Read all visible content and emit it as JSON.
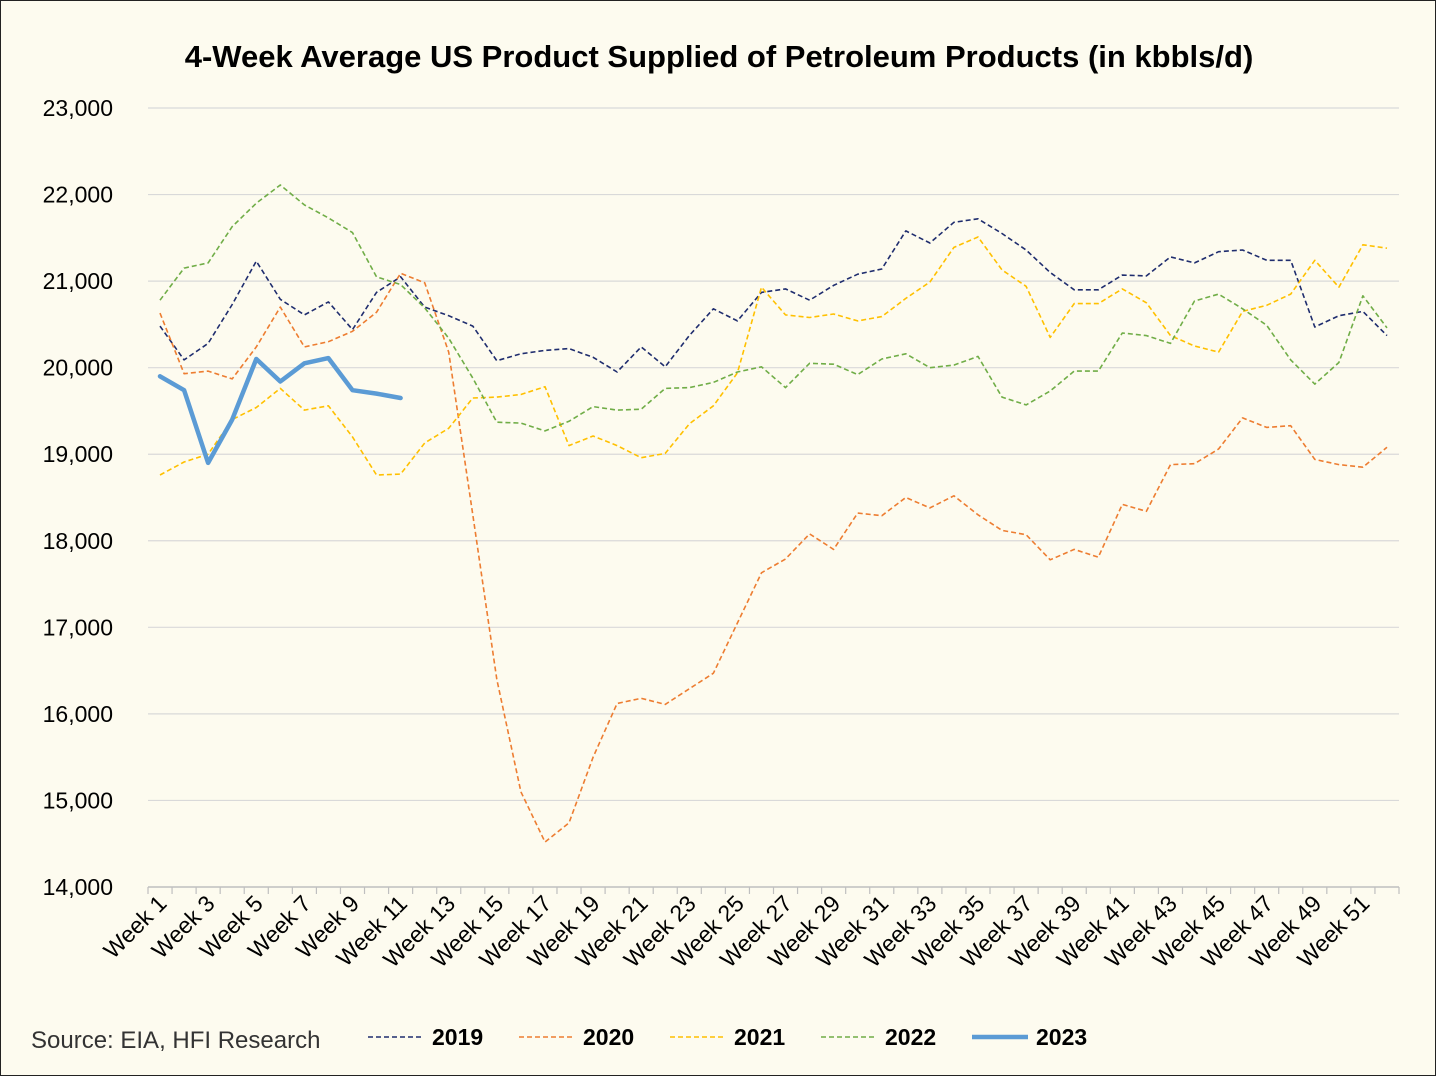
{
  "chart_data": {
    "type": "line",
    "title": "4-Week Average US Product Supplied of Petroleum Products (in kbbls/d)",
    "source": "Source: EIA, HFI Research",
    "xlabel": "",
    "ylabel": "",
    "ylim": [
      14000,
      23000
    ],
    "yticks": [
      "14,000",
      "15,000",
      "16,000",
      "17,000",
      "18,000",
      "19,000",
      "20,000",
      "21,000",
      "22,000",
      "23,000"
    ],
    "xticks": [
      "Week 1",
      "Week 3",
      "Week 5",
      "Week 7",
      "Week 9",
      "Week 11",
      "Week 13",
      "Week 15",
      "Week 17",
      "Week 19",
      "Week 21",
      "Week 23",
      "Week 25",
      "Week 27",
      "Week 29",
      "Week 31",
      "Week 33",
      "Week 35",
      "Week 37",
      "Week 39",
      "Week 41",
      "Week 43",
      "Week 45",
      "Week 47",
      "Week 49",
      "Week 51"
    ],
    "legend_position": "bottom",
    "grid": true,
    "series": [
      {
        "name": "2019",
        "color": "#1f2d6e",
        "style": "dashed",
        "values": [
          20480,
          20090,
          20280,
          20730,
          21230,
          20790,
          20610,
          20760,
          20440,
          20870,
          21050,
          20700,
          20600,
          20480,
          20080,
          20160,
          20200,
          20220,
          20120,
          19950,
          20240,
          20010,
          20370,
          20680,
          20540,
          20870,
          20910,
          20780,
          20950,
          21080,
          21140,
          21580,
          21440,
          21680,
          21720,
          21550,
          21360,
          21100,
          20900,
          20900,
          21070,
          21060,
          21280,
          21210,
          21340,
          21360,
          21240,
          21240,
          20470,
          20600,
          20650,
          20370
        ]
      },
      {
        "name": "2020",
        "color": "#ed7d31",
        "style": "dashed",
        "values": [
          20630,
          19930,
          19960,
          19870,
          20240,
          20700,
          20240,
          20300,
          20420,
          20640,
          21090,
          20980,
          20180,
          18300,
          16400,
          15100,
          14520,
          14740,
          15500,
          16120,
          16180,
          16110,
          16290,
          16470,
          17050,
          17630,
          17790,
          18080,
          17900,
          18320,
          18290,
          18500,
          18380,
          18520,
          18300,
          18120,
          18070,
          17780,
          17900,
          17810,
          18420,
          18340,
          18880,
          18890,
          19060,
          19420,
          19310,
          19330,
          18940,
          18880,
          18850,
          19080
        ]
      },
      {
        "name": "2021",
        "color": "#ffc000",
        "style": "dashed",
        "values": [
          18760,
          18910,
          19000,
          19400,
          19540,
          19760,
          19510,
          19560,
          19200,
          18760,
          18770,
          19130,
          19300,
          19650,
          19660,
          19690,
          19780,
          19100,
          19210,
          19100,
          18960,
          19010,
          19350,
          19560,
          19940,
          20930,
          20610,
          20580,
          20620,
          20540,
          20590,
          20800,
          20990,
          21390,
          21510,
          21130,
          20940,
          20350,
          20740,
          20740,
          20910,
          20750,
          20370,
          20250,
          20180,
          20650,
          20720,
          20850,
          21240,
          20930,
          21420,
          21380
        ]
      },
      {
        "name": "2022",
        "color": "#70ad47",
        "style": "dashed",
        "values": [
          20780,
          21150,
          21210,
          21630,
          21900,
          22110,
          21880,
          21730,
          21560,
          21050,
          20960,
          20690,
          20340,
          19880,
          19370,
          19360,
          19270,
          19380,
          19550,
          19510,
          19520,
          19760,
          19770,
          19830,
          19950,
          20010,
          19770,
          20050,
          20040,
          19920,
          20100,
          20160,
          20000,
          20030,
          20130,
          19660,
          19570,
          19730,
          19960,
          19960,
          20400,
          20370,
          20280,
          20770,
          20850,
          20680,
          20490,
          20090,
          19810,
          20060,
          20830,
          20460
        ]
      },
      {
        "name": "2023",
        "color": "#5b9bd5",
        "style": "solid",
        "values": [
          19900,
          19740,
          18900,
          19400,
          20100,
          19840,
          20050,
          20110,
          19740,
          19700,
          19650
        ]
      }
    ]
  }
}
